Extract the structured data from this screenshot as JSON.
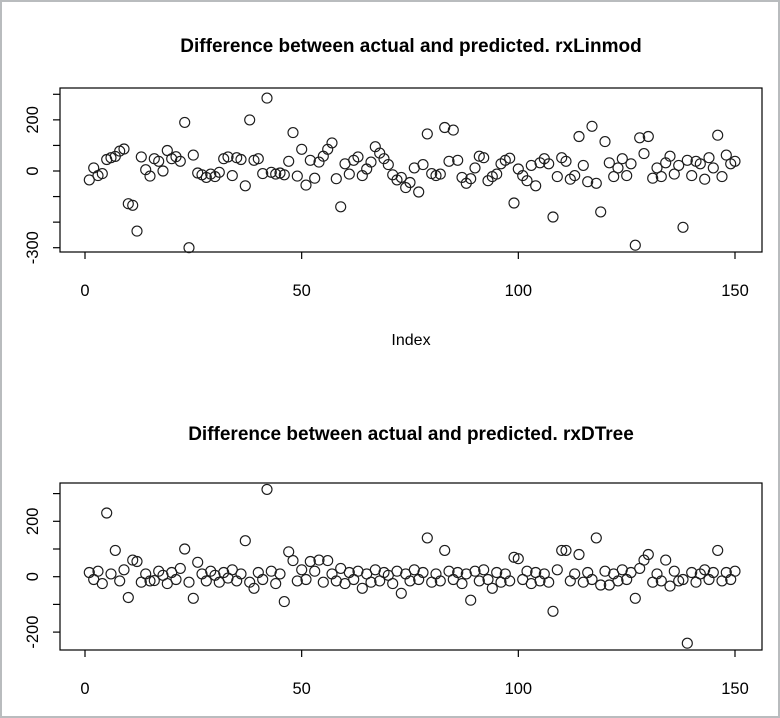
{
  "window": {
    "background": "#ffffff",
    "border_color": "#b9bcbe",
    "marker_color": "#1c1c1c",
    "axis_color": "#000000"
  },
  "chart_data": [
    {
      "type": "scatter",
      "title": "Difference between actual and predicted. rxLinmod",
      "xlabel": "Index",
      "ylabel": "",
      "marker": "open-circle",
      "x_rule": "index 1..150",
      "xlim": [
        -5,
        156
      ],
      "ylim": [
        -320,
        322
      ],
      "x_ticks": [
        0,
        50,
        100,
        150
      ],
      "x_tick_labels": [
        "0",
        "50",
        "100",
        "150"
      ],
      "y_ticks": [
        300,
        200,
        100,
        0,
        -100,
        -200,
        -300
      ],
      "y_tick_labels": [
        "",
        "200",
        "",
        "0",
        "",
        "",
        "-300"
      ],
      "grid": false,
      "values": [
        -35,
        12,
        -18,
        -10,
        45,
        52,
        57,
        78,
        86,
        -128,
        -134,
        -235,
        55,
        5,
        -20,
        48,
        38,
        0,
        80,
        48,
        56,
        38,
        190,
        -300,
        62,
        -8,
        -15,
        -25,
        -12,
        -22,
        -5,
        48,
        55,
        -18,
        52,
        45,
        -58,
        200,
        42,
        48,
        -10,
        285,
        -5,
        -12,
        -8,
        -15,
        38,
        150,
        -20,
        85,
        -55,
        42,
        -28,
        35,
        58,
        85,
        110,
        -30,
        -140,
        28,
        -12,
        42,
        55,
        -18,
        8,
        35,
        95,
        70,
        48,
        25,
        -15,
        -35,
        -25,
        -65,
        -45,
        12,
        -82,
        25,
        145,
        -10,
        -18,
        -12,
        170,
        38,
        160,
        42,
        -25,
        -48,
        -30,
        12,
        58,
        52,
        -38,
        -22,
        -12,
        28,
        42,
        50,
        -125,
        8,
        -18,
        -38,
        22,
        -58,
        32,
        48,
        28,
        -180,
        -22,
        52,
        38,
        -32,
        -18,
        135,
        22,
        -42,
        175,
        -48,
        -160,
        115,
        32,
        -22,
        12,
        48,
        -18,
        28,
        -290,
        130,
        68,
        135,
        -28,
        12,
        -22,
        32,
        58,
        -12,
        22,
        -220,
        42,
        -18,
        38,
        28,
        -32,
        52,
        12,
        140,
        -22,
        62,
        28,
        38
      ]
    },
    {
      "type": "scatter",
      "title": "Difference between actual and predicted. rxDTree",
      "xlabel": "",
      "ylabel": "",
      "marker": "open-circle",
      "x_rule": "index 1..150",
      "xlim": [
        -5,
        156
      ],
      "ylim": [
        -265,
        340
      ],
      "x_ticks": [
        0,
        50,
        100,
        150
      ],
      "x_tick_labels": [
        "0",
        "50",
        "100",
        "150"
      ],
      "y_ticks": [
        300,
        200,
        100,
        0,
        -100,
        -200
      ],
      "y_tick_labels": [
        "",
        "200",
        "",
        "0",
        "",
        "-200"
      ],
      "grid": false,
      "values": [
        15,
        -10,
        20,
        -25,
        230,
        10,
        95,
        -15,
        25,
        -75,
        60,
        55,
        -20,
        10,
        -15,
        -14,
        20,
        5,
        -25,
        15,
        -10,
        30,
        100,
        -20,
        -78,
        52,
        10,
        -15,
        20,
        5,
        -20,
        15,
        -5,
        25,
        -15,
        10,
        130,
        -20,
        -42,
        15,
        -10,
        315,
        20,
        -25,
        10,
        -90,
        90,
        58,
        -15,
        25,
        -10,
        55,
        20,
        60,
        -20,
        58,
        10,
        -15,
        30,
        -25,
        15,
        -10,
        20,
        -42,
        10,
        -20,
        25,
        -15,
        15,
        5,
        -25,
        20,
        -60,
        10,
        -15,
        25,
        -10,
        15,
        140,
        -20,
        10,
        -15,
        95,
        20,
        -10,
        15,
        -25,
        10,
        -85,
        20,
        -15,
        25,
        -10,
        -42,
        15,
        -20,
        10,
        -15,
        70,
        65,
        -10,
        20,
        -25,
        15,
        -15,
        10,
        -20,
        -125,
        25,
        95,
        95,
        -15,
        10,
        80,
        -20,
        15,
        -10,
        140,
        -30,
        20,
        -30,
        10,
        -15,
        25,
        -10,
        15,
        -78,
        30,
        60,
        80,
        -20,
        10,
        -15,
        60,
        -34,
        20,
        -15,
        -10,
        -240,
        15,
        -20,
        10,
        25,
        -10,
        15,
        95,
        -15,
        15,
        -10,
        20
      ]
    }
  ]
}
